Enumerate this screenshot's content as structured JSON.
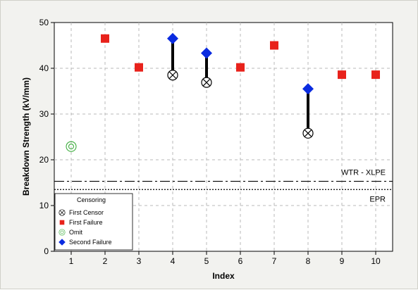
{
  "chart_data": {
    "type": "scatter",
    "xlabel": "Index",
    "ylabel": "Breakdown Strength (kV/mm)",
    "xlim": [
      0.5,
      10.5
    ],
    "ylim": [
      0,
      50
    ],
    "x_ticks": [
      1,
      2,
      3,
      4,
      5,
      6,
      7,
      8,
      9,
      10
    ],
    "y_ticks": [
      0,
      10,
      20,
      30,
      40,
      50
    ],
    "grid": true,
    "legend": {
      "title": "Censoring",
      "placement": "bottom-left",
      "entries": [
        "First Censor",
        "First Failure",
        "Omit",
        "Second Failure"
      ]
    },
    "series": [
      {
        "name": "First Censor",
        "marker": "circle-x",
        "color": "#000000",
        "points": [
          {
            "x": 4,
            "y": 38.5
          },
          {
            "x": 5,
            "y": 36.9
          },
          {
            "x": 8,
            "y": 25.8
          }
        ]
      },
      {
        "name": "First Failure",
        "marker": "square",
        "color": "#e8221b",
        "points": [
          {
            "x": 2,
            "y": 46.5
          },
          {
            "x": 3,
            "y": 40.2
          },
          {
            "x": 6,
            "y": 40.2
          },
          {
            "x": 7,
            "y": 45.0
          },
          {
            "x": 9,
            "y": 38.6
          },
          {
            "x": 10,
            "y": 38.6
          }
        ]
      },
      {
        "name": "Omit",
        "marker": "double-circle",
        "color": "#3fae3f",
        "points": [
          {
            "x": 1,
            "y": 22.9
          }
        ]
      },
      {
        "name": "Second Failure",
        "marker": "diamond",
        "color": "#0a2be0",
        "points": [
          {
            "x": 4,
            "y": 46.5
          },
          {
            "x": 5,
            "y": 43.3
          },
          {
            "x": 8,
            "y": 35.5
          }
        ]
      }
    ],
    "connectors": [
      {
        "x": 4,
        "from": 38.5,
        "to": 46.5
      },
      {
        "x": 5,
        "from": 36.9,
        "to": 43.3
      },
      {
        "x": 8,
        "from": 25.8,
        "to": 35.5
      }
    ],
    "reference_lines": [
      {
        "label": "WTR - XLPE",
        "y": 15.3,
        "style": "dash-dot"
      },
      {
        "label": "EPR",
        "y": 13.5,
        "style": "dotted"
      }
    ]
  }
}
